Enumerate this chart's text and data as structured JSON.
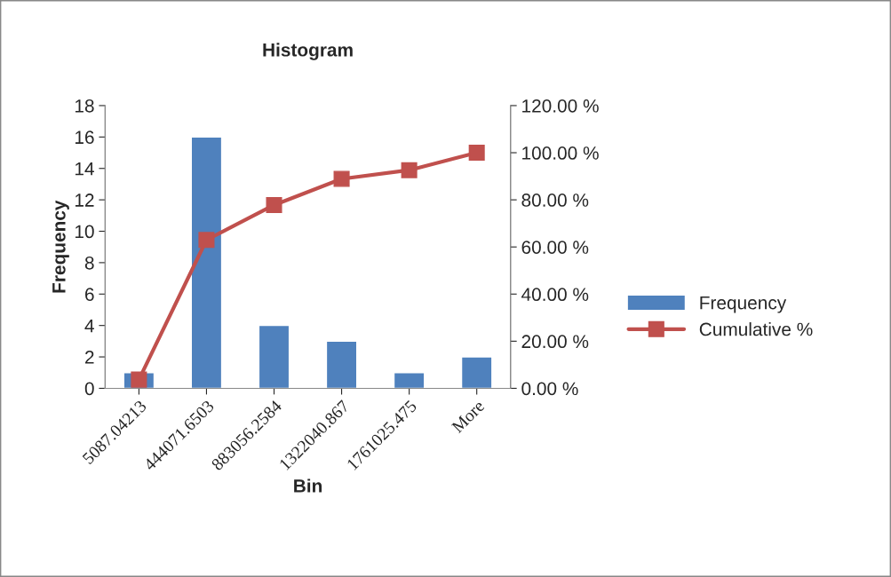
{
  "chart_data": {
    "type": "bar",
    "title": "Histogram",
    "xlabel": "Bin",
    "ylabel": "Frequency",
    "categories": [
      "5087.04213",
      "444071.6503",
      "883056.2584",
      "1322040.867",
      "1761025.475",
      "More"
    ],
    "series": [
      {
        "name": "Frequency",
        "color": "#4f81bd",
        "values": [
          1,
          16,
          4,
          3,
          1,
          2
        ]
      },
      {
        "name": "Cumulative %",
        "type": "line",
        "axis": "y2",
        "color": "#c0504d",
        "marker": "square",
        "values": [
          3.7,
          63,
          77.8,
          88.9,
          92.6,
          100
        ]
      }
    ],
    "ylim": [
      0,
      18
    ],
    "yticks": [
      0,
      2,
      4,
      6,
      8,
      10,
      12,
      14,
      16,
      18
    ],
    "y2lim": [
      0,
      120
    ],
    "y2ticks": [
      {
        "value": 0,
        "label": "0.00 %"
      },
      {
        "value": 20,
        "label": "20.00 %"
      },
      {
        "value": 40,
        "label": "40.00 %"
      },
      {
        "value": 60,
        "label": "60.00 %"
      },
      {
        "value": 80,
        "label": "80.00 %"
      },
      {
        "value": 100,
        "label": "100.00 %"
      },
      {
        "value": 120,
        "label": "120.00 %"
      }
    ],
    "grid": false,
    "legend": "right"
  }
}
